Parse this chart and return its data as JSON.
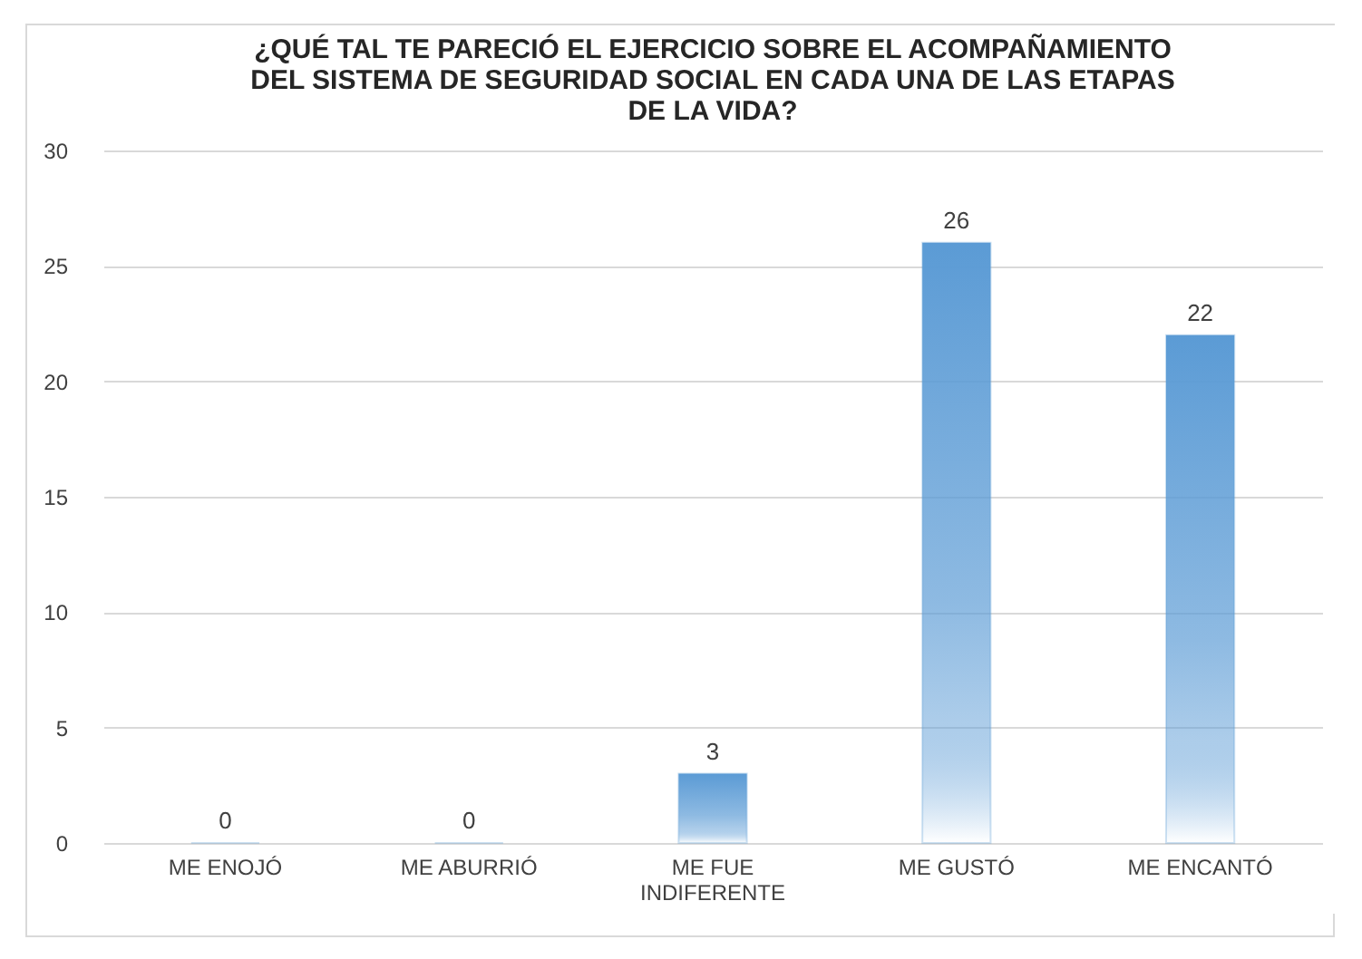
{
  "chart_data": {
    "type": "bar",
    "title": "¿QUÉ TAL TE PARECIÓ EL EJERCICIO SOBRE EL ACOMPAÑAMIENTO\nDEL SISTEMA DE SEGURIDAD SOCIAL EN CADA UNA DE LAS ETAPAS\nDE LA VIDA?",
    "categories": [
      "ME ENOJÓ",
      "ME ABURRIÓ",
      "ME FUE INDIFERENTE",
      "ME GUSTÓ",
      "ME ENCANTÓ"
    ],
    "values": [
      0,
      0,
      3,
      26,
      22
    ],
    "color": "#5b9bd5",
    "ylim": [
      0,
      30
    ],
    "yticks": [
      0,
      5,
      10,
      15,
      20,
      25,
      30
    ],
    "grid": "y",
    "data_labels": true
  }
}
